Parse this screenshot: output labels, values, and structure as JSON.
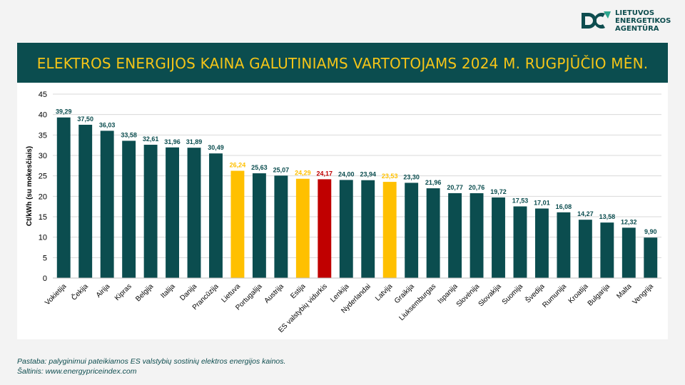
{
  "logo": {
    "lines": [
      "LIETUVOS",
      "ENERGETIKOS",
      "AGENTŪRA"
    ],
    "colors": [
      "#0e4d4f",
      "#2ca58d"
    ]
  },
  "banner": {
    "title": "ELEKTROS ENERGIJOS KAINA GALUTINIAMS VARTOTOJAMS 2024 M. RUGPJŪČIO MĖN."
  },
  "footer": {
    "note": "Pastaba: palyginimui pateikiamos ES valstybių sostinių elektros energijos kainos.",
    "source": "Šaltinis: www.energypriceindex.com"
  },
  "chart_data": {
    "type": "bar",
    "ylabel": "Ct/kWh (su mokesčiais)",
    "ylim": [
      0,
      45
    ],
    "yticks": [
      0,
      5,
      10,
      15,
      20,
      25,
      30,
      35,
      40,
      45
    ],
    "grid": true,
    "categories": [
      "Vokietija",
      "Čekija",
      "Airija",
      "Kipras",
      "Belgija",
      "Italija",
      "Danija",
      "Prancūzija",
      "Lietuva",
      "Portugalija",
      "Austrija",
      "Estija",
      "ES valstybių vidurkis",
      "Lenkija",
      "Nyderlandai",
      "Latvija",
      "Graikija",
      "Liuksemburgas",
      "Ispanija",
      "Slovėnija",
      "Slovakija",
      "Suomija",
      "Švedija",
      "Rumunija",
      "Kroatija",
      "Bulgarija",
      "Malta",
      "Vengrija"
    ],
    "values": [
      39.29,
      37.5,
      36.03,
      33.58,
      32.61,
      31.96,
      31.89,
      30.49,
      26.24,
      25.63,
      25.07,
      24.29,
      24.17,
      24.0,
      23.94,
      23.53,
      23.3,
      21.96,
      20.77,
      20.76,
      19.72,
      17.53,
      17.01,
      16.08,
      14.27,
      13.58,
      12.32,
      9.9
    ],
    "labels": [
      "39,29",
      "37,50",
      "36,03",
      "33,58",
      "32,61",
      "31,96",
      "31,89",
      "30,49",
      "26,24",
      "25,63",
      "25,07",
      "24,29",
      "24,17",
      "24,00",
      "23,94",
      "23,53",
      "23,30",
      "21,96",
      "20,77",
      "20,76",
      "19,72",
      "17,53",
      "17,01",
      "16,08",
      "14,27",
      "13,58",
      "12,32",
      "9,90"
    ],
    "colors": {
      "default": "#0b4d4f",
      "baltic": "#ffc000",
      "eu_average": "#c00000"
    },
    "highlight": {
      "Lietuva": "baltic",
      "Estija": "baltic",
      "Latvija": "baltic",
      "ES valstybių vidurkis": "eu_average"
    }
  }
}
